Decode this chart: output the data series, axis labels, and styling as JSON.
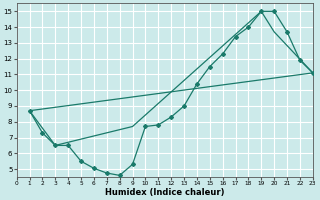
{
  "xlabel": "Humidex (Indice chaleur)",
  "ylabel": "",
  "xlim": [
    0,
    23
  ],
  "ylim": [
    4.5,
    15.5
  ],
  "xticks": [
    0,
    1,
    2,
    3,
    4,
    5,
    6,
    7,
    8,
    9,
    10,
    11,
    12,
    13,
    14,
    15,
    16,
    17,
    18,
    19,
    20,
    21,
    22,
    23
  ],
  "yticks": [
    5,
    6,
    7,
    8,
    9,
    10,
    11,
    12,
    13,
    14,
    15
  ],
  "bg_color": "#cceaea",
  "grid_color": "#ffffff",
  "line_color": "#1a7a6a",
  "line1_x": [
    1,
    2,
    3,
    4,
    5,
    6,
    7,
    8,
    9,
    10,
    11,
    12,
    13,
    14,
    15,
    16,
    17,
    18,
    19,
    20,
    21,
    22,
    23
  ],
  "line1_y": [
    8.7,
    7.3,
    6.5,
    6.5,
    5.5,
    5.05,
    4.75,
    4.6,
    5.3,
    7.7,
    7.8,
    8.3,
    9.0,
    10.4,
    11.5,
    12.3,
    13.4,
    14.0,
    15.0,
    15.0,
    13.7,
    11.9,
    11.1
  ],
  "line2_x": [
    1,
    3,
    9,
    19,
    20,
    23
  ],
  "line2_y": [
    8.7,
    6.5,
    7.7,
    15.0,
    13.7,
    11.1
  ],
  "line3_x": [
    1,
    23
  ],
  "line3_y": [
    8.7,
    11.1
  ]
}
